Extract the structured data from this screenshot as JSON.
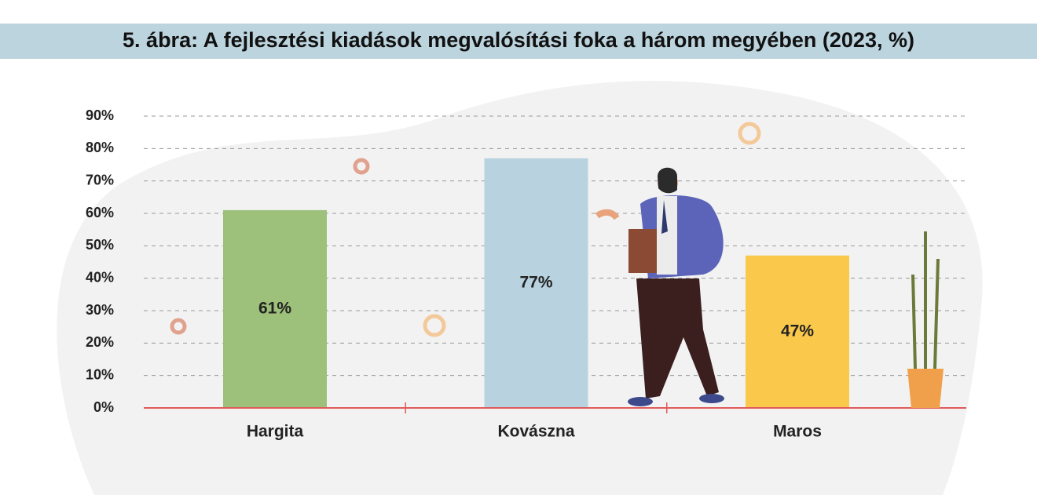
{
  "chart_data": {
    "type": "bar",
    "title": "5. ábra: A fejlesztési kiadások megvalósítási foka a három megyében (2023, %)",
    "categories": [
      "Hargita",
      "Kovászna",
      "Maros"
    ],
    "values": [
      61,
      77,
      47
    ],
    "value_labels": [
      "61%",
      "77%",
      "47%"
    ],
    "colors": [
      "#9dc07a",
      "#b8d3df",
      "#fac84a"
    ],
    "ylim": [
      0,
      90
    ],
    "yticks": [
      {
        "value": 0,
        "label": "0%"
      },
      {
        "value": 10,
        "label": "10%"
      },
      {
        "value": 20,
        "label": "20%"
      },
      {
        "value": 30,
        "label": "30%"
      },
      {
        "value": 40,
        "label": "40%"
      },
      {
        "value": 50,
        "label": "50%"
      },
      {
        "value": 60,
        "label": "60%"
      },
      {
        "value": 70,
        "label": "70%"
      },
      {
        "value": 80,
        "label": "80%"
      },
      {
        "value": 90,
        "label": "90%"
      }
    ],
    "grid": true
  }
}
